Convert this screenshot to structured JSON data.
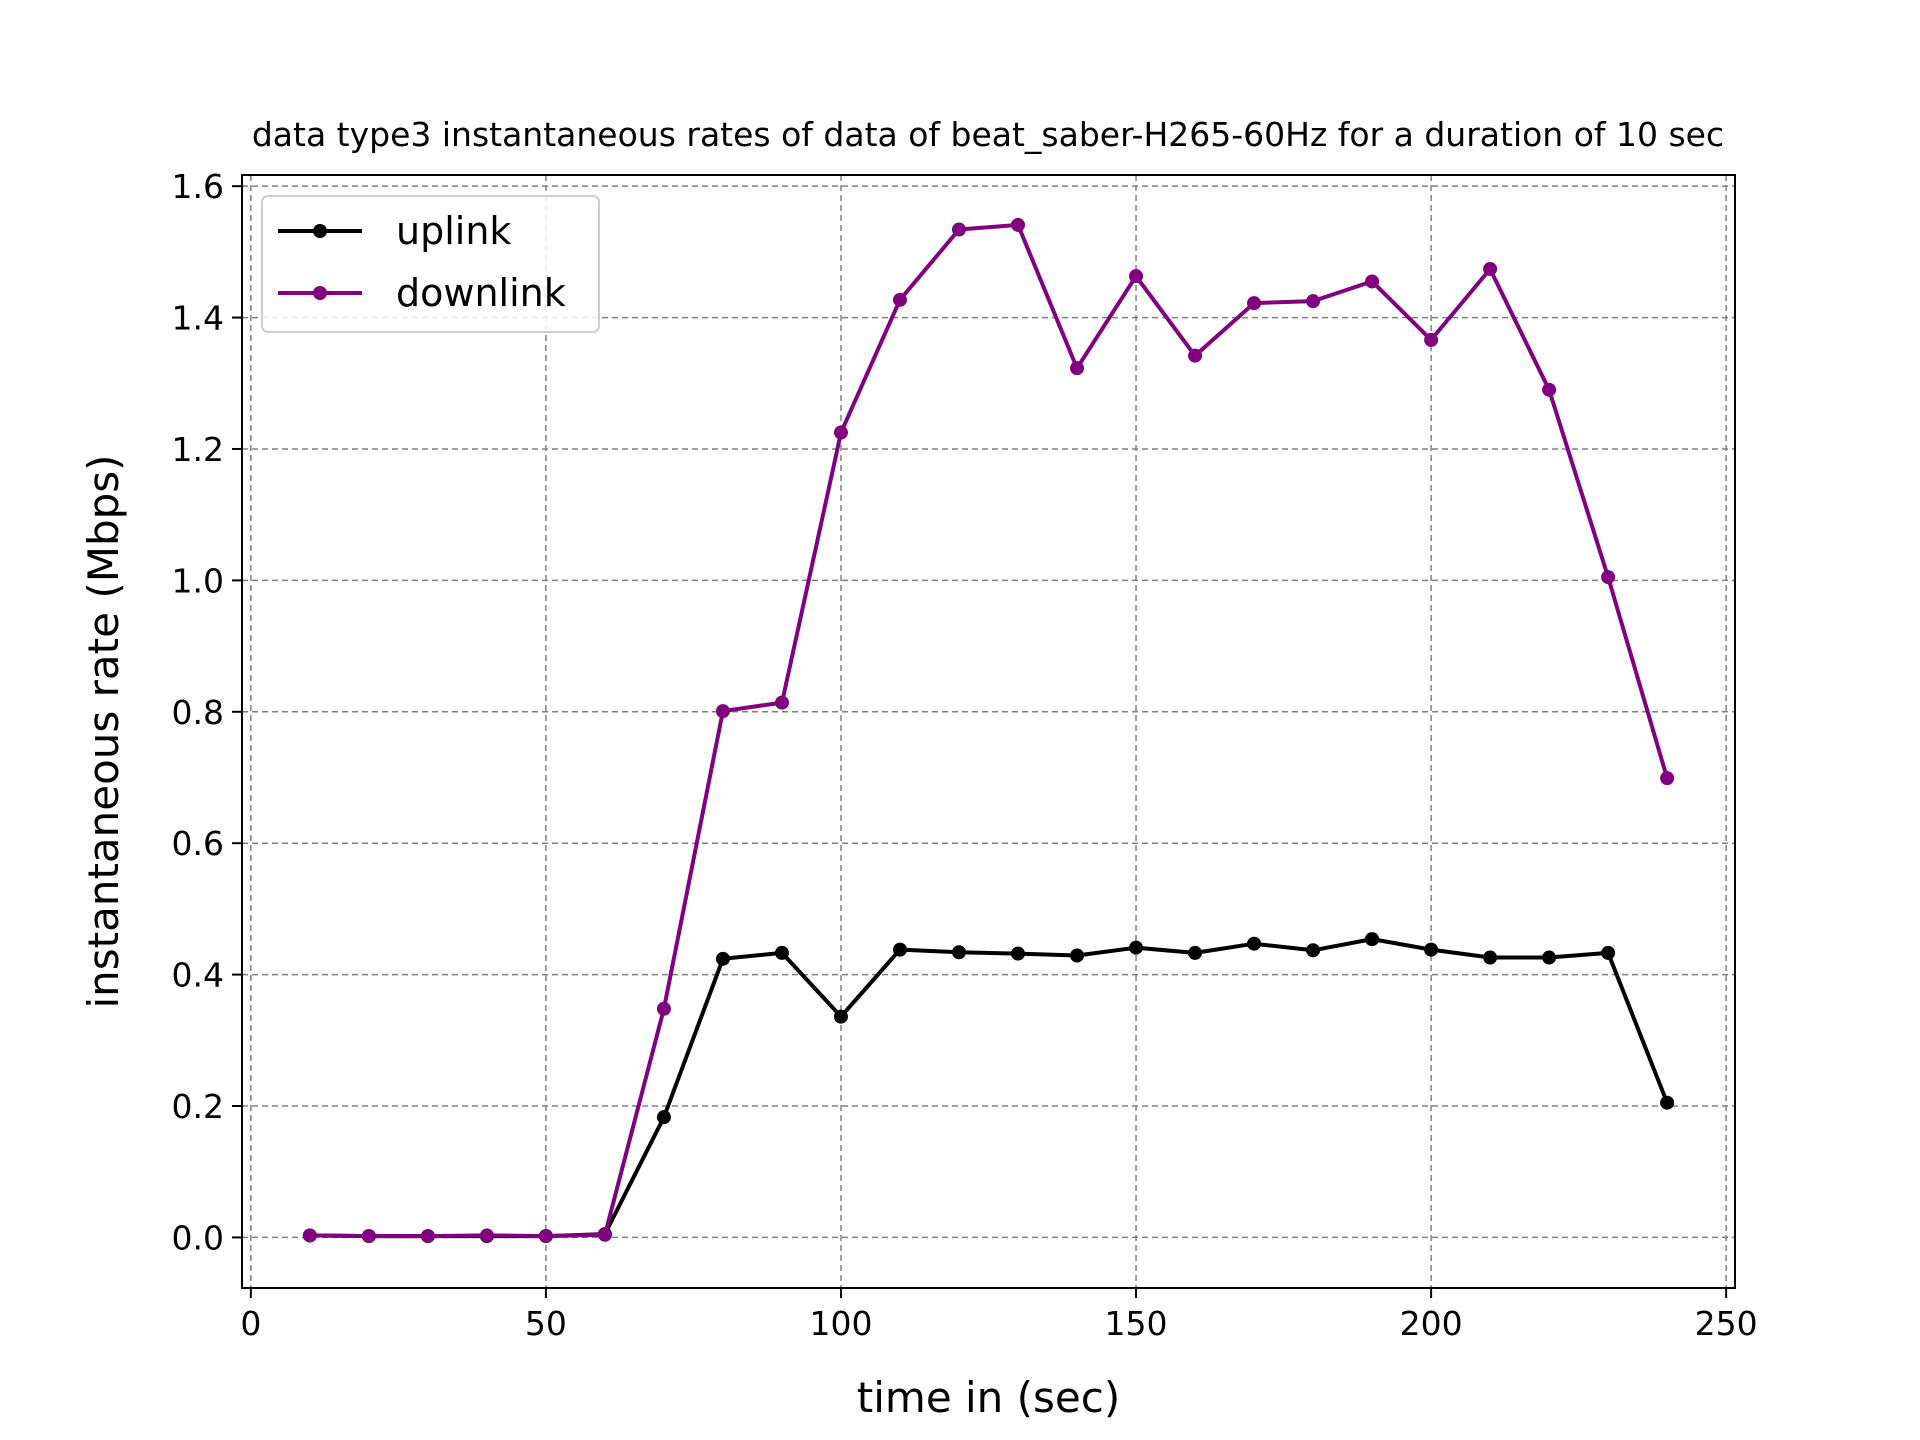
{
  "chart_data": {
    "type": "line",
    "title": "data type3 instantaneous rates of data of beat_saber-H265-60Hz for a duration of 10 sec",
    "xlabel": "time in (sec)",
    "ylabel": "instantaneous rate (Mbps)",
    "xlim": [
      -1.5,
      251.5
    ],
    "ylim": [
      -0.077,
      1.617
    ],
    "xticks": [
      0,
      50,
      100,
      150,
      200,
      250
    ],
    "yticks": [
      0.0,
      0.2,
      0.4,
      0.6,
      0.8,
      1.0,
      1.2,
      1.4,
      1.6
    ],
    "xtick_labels": [
      "0",
      "50",
      "100",
      "150",
      "200",
      "250"
    ],
    "ytick_labels": [
      "0.0",
      "0.2",
      "0.4",
      "0.6",
      "0.8",
      "1.0",
      "1.2",
      "1.4",
      "1.6"
    ],
    "grid": true,
    "legend_position": "top-left",
    "x": [
      10,
      20,
      30,
      40,
      50,
      60,
      70,
      80,
      90,
      100,
      110,
      120,
      130,
      140,
      150,
      160,
      170,
      180,
      190,
      200,
      210,
      220,
      230,
      240
    ],
    "series": [
      {
        "name": "uplink",
        "color": "#000000",
        "values": [
          0.003,
          0.002,
          0.002,
          0.002,
          0.002,
          0.005,
          0.183,
          0.424,
          0.433,
          0.336,
          0.438,
          0.434,
          0.432,
          0.429,
          0.441,
          0.433,
          0.447,
          0.437,
          0.454,
          0.438,
          0.426,
          0.426,
          0.433,
          0.205
        ]
      },
      {
        "name": "downlink",
        "color": "#800080",
        "values": [
          0.003,
          0.002,
          0.002,
          0.003,
          0.002,
          0.004,
          0.348,
          0.801,
          0.814,
          1.225,
          1.427,
          1.534,
          1.541,
          1.323,
          1.463,
          1.342,
          1.422,
          1.425,
          1.455,
          1.366,
          1.474,
          1.29,
          1.005,
          0.699
        ]
      }
    ]
  }
}
